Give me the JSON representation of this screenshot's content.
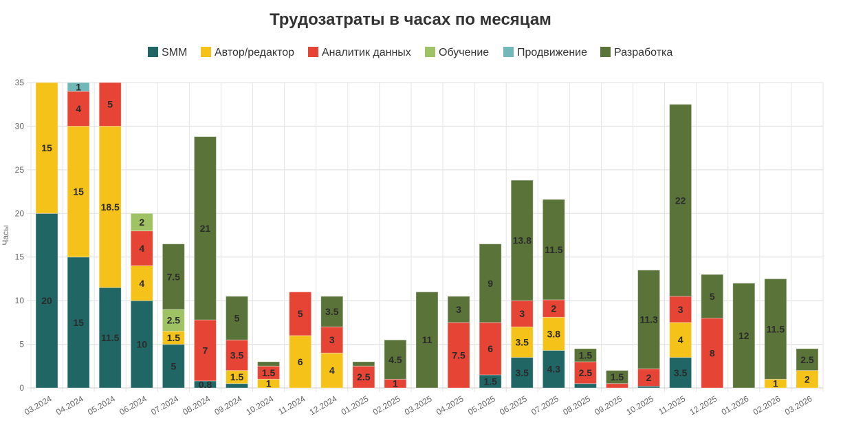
{
  "chart_data": {
    "type": "bar",
    "stacked": true,
    "title": "Трудозатраты в часах по месяцам",
    "xlabel": "",
    "ylabel": "Часы",
    "ylim": [
      0,
      35
    ],
    "yticks": [
      0,
      5,
      10,
      15,
      20,
      25,
      30,
      35
    ],
    "grid": true,
    "legend_position": "top",
    "categories": [
      "03.2024",
      "04.2024",
      "05.2024",
      "06.2024",
      "07.2024",
      "08.2024",
      "09.2024",
      "10.2024",
      "11.2024",
      "12.2024",
      "01.2025",
      "02.2025",
      "03.2025",
      "04.2025",
      "05.2025",
      "06.2025",
      "07.2025",
      "08.2025",
      "09.2025",
      "10.2025",
      "11.2025",
      "12.2025",
      "01.2026",
      "02.2026",
      "03.2026"
    ],
    "series": [
      {
        "name": "SMM",
        "color": "#1f6665",
        "values": [
          20,
          15,
          11.5,
          10,
          5,
          0.8,
          0.5,
          0,
          0,
          0,
          0,
          0,
          0,
          0,
          1.5,
          3.5,
          4.3,
          0.5,
          0,
          0.2,
          3.5,
          0,
          0,
          0,
          0
        ]
      },
      {
        "name": "Автор/редактор",
        "color": "#f5c219",
        "values": [
          15,
          15,
          18.5,
          4,
          1.5,
          0,
          1.5,
          1,
          6,
          4,
          0,
          0,
          0,
          0,
          0,
          3.5,
          3.8,
          0,
          0,
          0,
          4,
          0,
          0,
          1,
          2
        ]
      },
      {
        "name": "Аналитик данных",
        "color": "#e64434",
        "values": [
          0,
          4,
          5,
          4,
          0,
          7,
          3.5,
          1.5,
          5,
          3,
          2.5,
          1,
          0,
          7.5,
          6,
          3,
          2,
          2.5,
          0.5,
          2,
          3,
          8,
          0,
          0,
          0
        ]
      },
      {
        "name": "Обучение",
        "color": "#9fc364",
        "values": [
          0,
          0,
          0,
          2,
          2.5,
          0,
          0,
          0,
          0,
          0,
          0,
          0,
          0,
          0,
          0,
          0,
          0,
          0,
          0,
          0,
          0,
          0,
          0,
          0,
          0
        ]
      },
      {
        "name": "Продвижение",
        "color": "#72b8b8",
        "values": [
          0,
          1,
          0,
          0,
          0,
          0,
          0,
          0,
          0,
          0,
          0,
          0,
          0,
          0,
          0,
          0,
          0,
          0,
          0,
          0,
          0,
          0,
          0,
          0,
          0
        ]
      },
      {
        "name": "Разработка",
        "color": "#5a7338",
        "values": [
          0,
          0,
          0,
          0,
          7.5,
          21,
          5,
          0.5,
          0,
          3.5,
          0.5,
          4.5,
          11,
          3,
          9,
          13.8,
          11.5,
          1.5,
          1.5,
          11.3,
          22,
          5,
          12,
          11.5,
          2.5
        ]
      }
    ]
  }
}
